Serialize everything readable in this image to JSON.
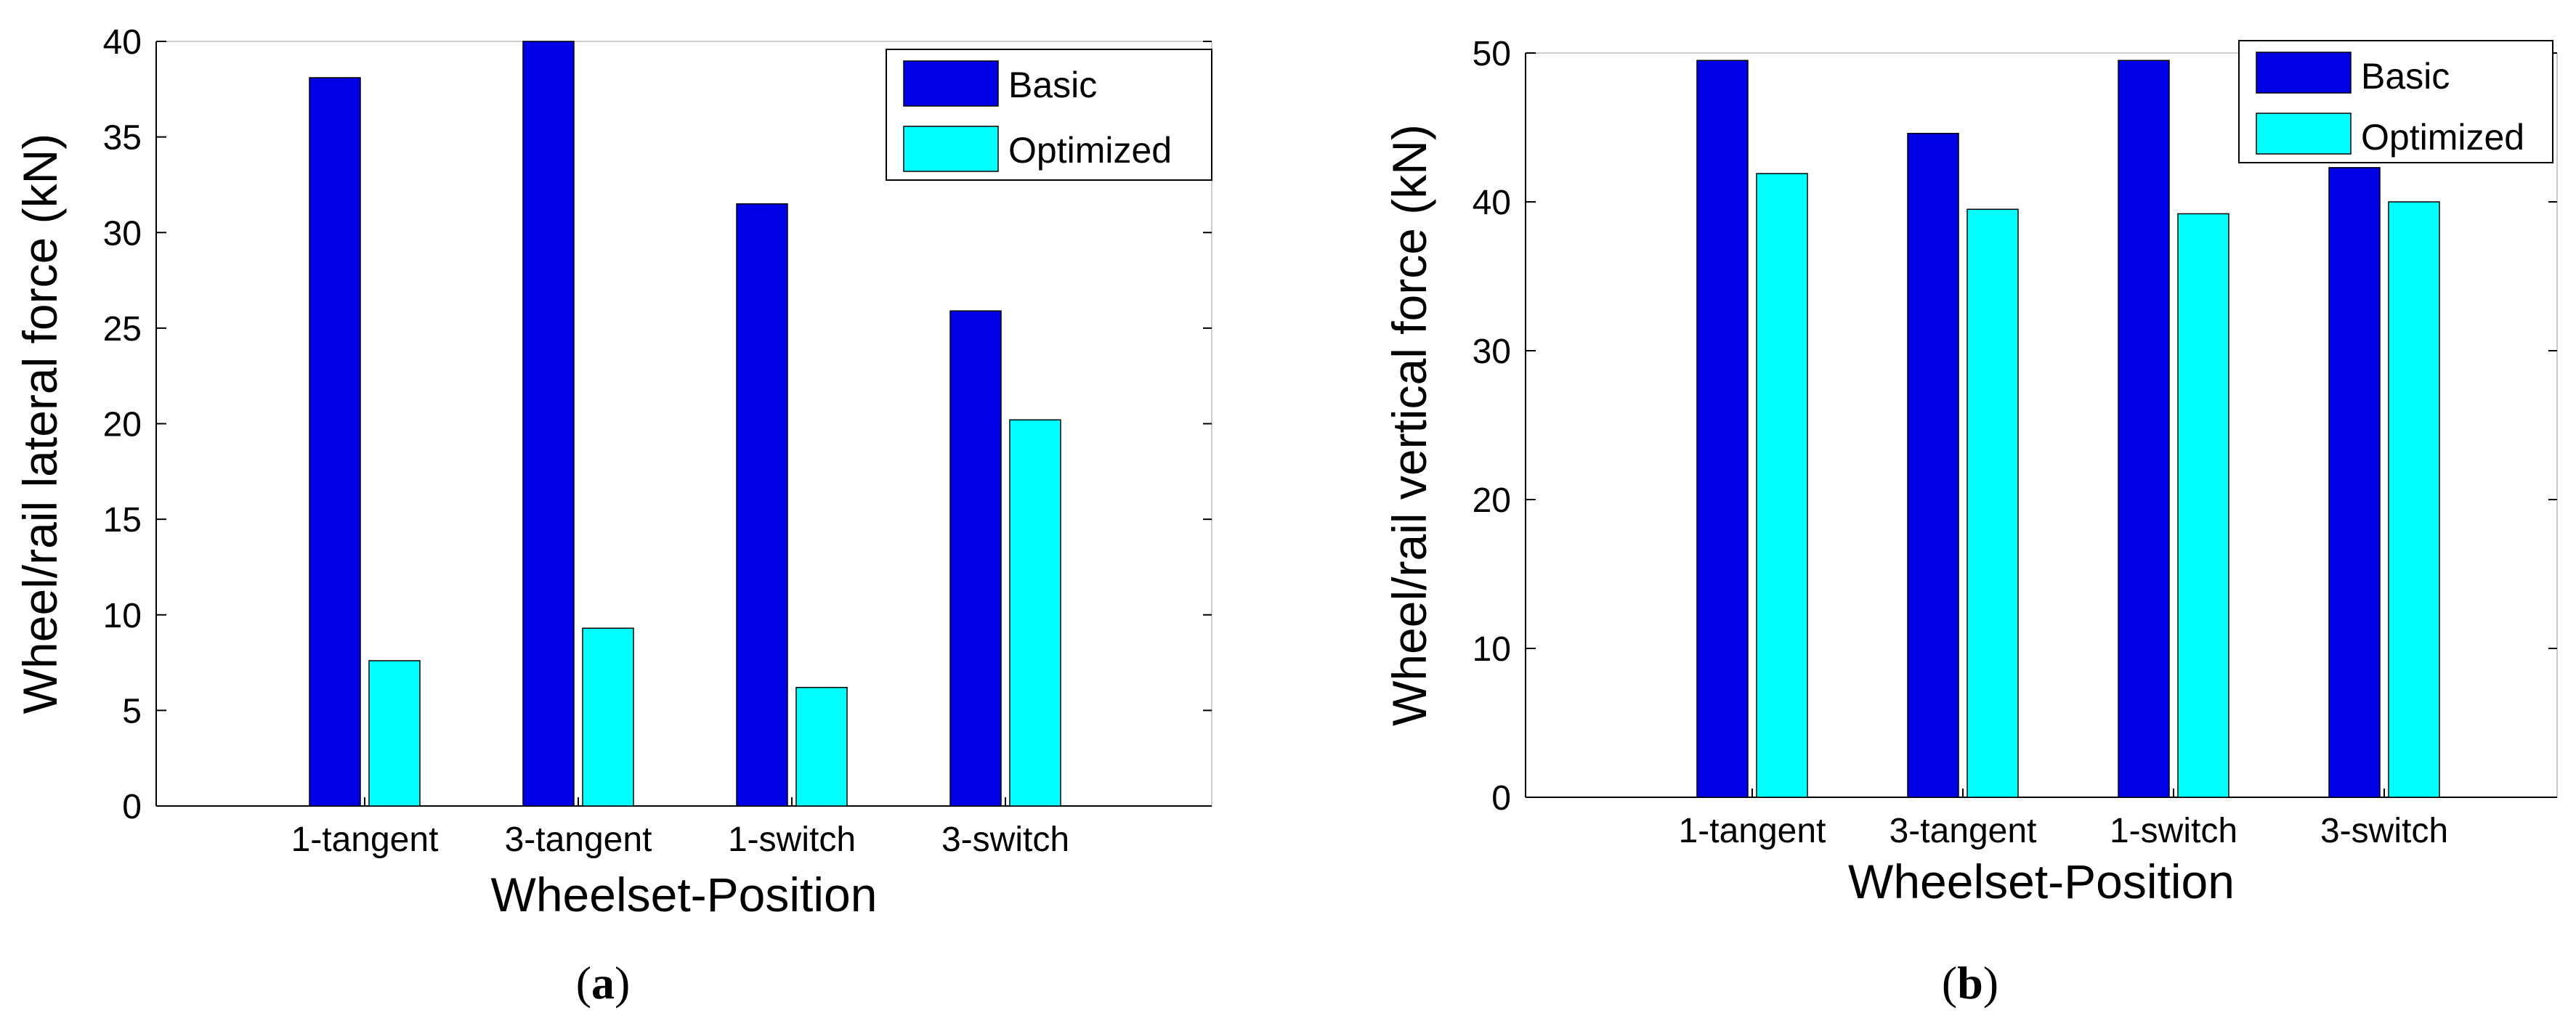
{
  "colors": {
    "basic": "#0000e6",
    "optimized": "#00ffff",
    "axis": "#000000"
  },
  "chart_data": [
    {
      "type": "bar",
      "panel": "a",
      "caption_open": "(",
      "caption_letter": "a",
      "caption_close": ")",
      "categories": [
        "1-tangent",
        "3-tangent",
        "1-switch",
        "3-switch"
      ],
      "series": [
        {
          "name": "Basic",
          "values": [
            38.1,
            40.0,
            31.5,
            25.9
          ]
        },
        {
          "name": "Optimized",
          "values": [
            7.6,
            9.3,
            6.2,
            20.2
          ]
        }
      ],
      "xlabel": "Wheelset-Position",
      "ylabel": "Wheel/rail lateral force (kN)",
      "ylim": [
        0,
        40
      ],
      "yticks": [
        "0",
        "5",
        "10",
        "15",
        "20",
        "25",
        "30",
        "35",
        "40"
      ],
      "legend_position": "top-right",
      "grid": false
    },
    {
      "type": "bar",
      "panel": "b",
      "caption_open": "(",
      "caption_letter": "b",
      "caption_close": ")",
      "categories": [
        "1-tangent",
        "3-tangent",
        "1-switch",
        "3-switch"
      ],
      "series": [
        {
          "name": "Basic",
          "values": [
            49.5,
            44.6,
            49.5,
            42.3
          ]
        },
        {
          "name": "Optimized",
          "values": [
            41.9,
            39.5,
            39.2,
            40.0
          ]
        }
      ],
      "xlabel": "Wheelset-Position",
      "ylabel": "Wheel/rail vertical force (kN)",
      "ylim": [
        0,
        50
      ],
      "yticks": [
        "0",
        "10",
        "20",
        "30",
        "40",
        "50"
      ],
      "legend_position": "top-right",
      "grid": false
    }
  ]
}
